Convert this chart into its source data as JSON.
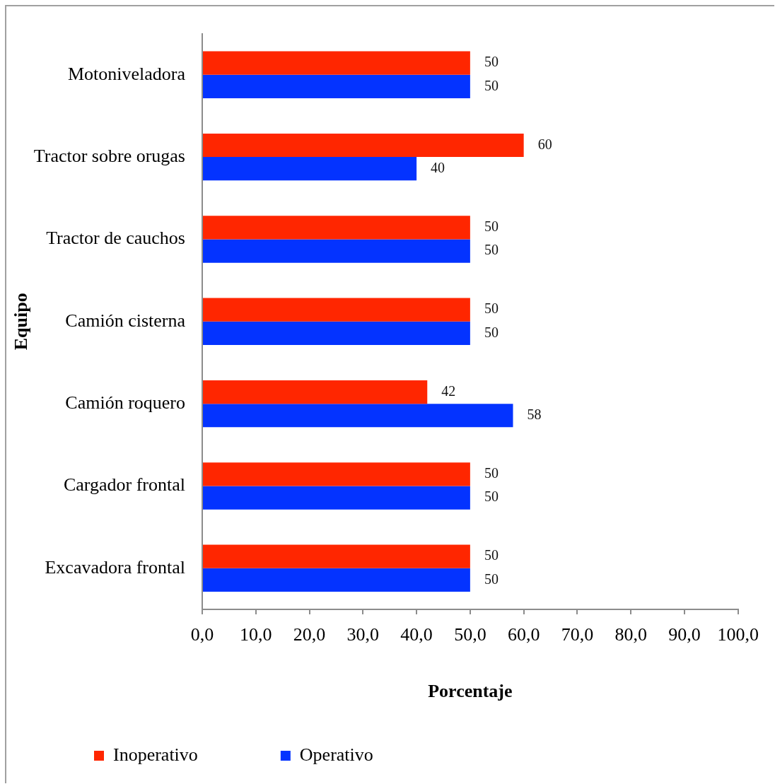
{
  "chart_data": {
    "type": "bar",
    "orientation": "horizontal",
    "xlabel": "Porcentaje",
    "ylabel": "Equipo",
    "categories": [
      "Motoniveladora",
      "Tractor sobre orugas",
      "Tractor de cauchos",
      "Camión cisterna",
      "Camión roquero",
      "Cargador frontal",
      "Excavadora frontal"
    ],
    "series": [
      {
        "name": "Inoperativo",
        "color": "#ff2600",
        "values": [
          50,
          60,
          50,
          50,
          42,
          50,
          50
        ]
      },
      {
        "name": "Operativo",
        "color": "#0433ff",
        "values": [
          50,
          40,
          50,
          50,
          58,
          50,
          50
        ]
      }
    ],
    "xlim": [
      0,
      100
    ],
    "xticks": [
      {
        "value": 0,
        "label": "0,0"
      },
      {
        "value": 10,
        "label": "10,0"
      },
      {
        "value": 20,
        "label": "20,0"
      },
      {
        "value": 30,
        "label": "30,0"
      },
      {
        "value": 40,
        "label": "40,0"
      },
      {
        "value": 50,
        "label": "50,0"
      },
      {
        "value": 60,
        "label": "60,0"
      },
      {
        "value": 70,
        "label": "70,0"
      },
      {
        "value": 80,
        "label": "80,0"
      },
      {
        "value": 90,
        "label": "90,0"
      },
      {
        "value": 100,
        "label": "100,0"
      }
    ],
    "data_labels": true,
    "legend": "bottom",
    "grid": false
  }
}
